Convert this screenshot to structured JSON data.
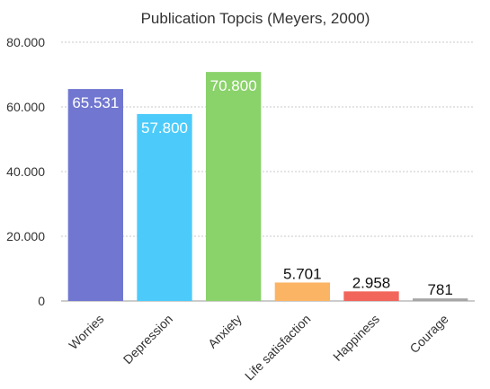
{
  "chart_data": {
    "type": "bar",
    "title": "Publication Topcis (Meyers, 2000)",
    "xlabel": "",
    "ylabel": "",
    "categories": [
      "Worries",
      "Depression",
      "Anxiety",
      "Life satisfaction",
      "Happiness",
      "Courage"
    ],
    "values": [
      65531,
      57800,
      70800,
      5701,
      2958,
      781
    ],
    "value_labels": [
      "65.531",
      "57.800",
      "70.800",
      "5.701",
      "2.958",
      "781"
    ],
    "colors": [
      "#7177d0",
      "#4ccbfa",
      "#8ad26a",
      "#fbb463",
      "#f2655a",
      "#a5a5a5"
    ],
    "ylim": [
      0,
      80000
    ],
    "yticks": [
      {
        "value": 0,
        "label": "0"
      },
      {
        "value": 20000,
        "label": "20.000"
      },
      {
        "value": 40000,
        "label": "40.000"
      },
      {
        "value": 60000,
        "label": "60.000"
      },
      {
        "value": 80000,
        "label": "80.000"
      }
    ],
    "grid": true,
    "legend": "none"
  }
}
